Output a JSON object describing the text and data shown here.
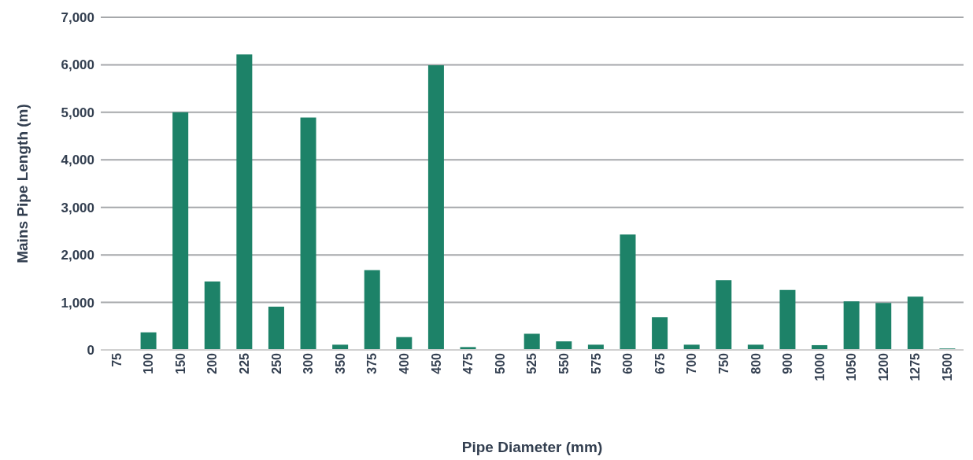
{
  "chart_data": {
    "type": "bar",
    "xlabel": "Pipe Diameter (mm)",
    "ylabel": "Mains Pipe Length (m)",
    "categories": [
      "75",
      "100",
      "150",
      "200",
      "225",
      "250",
      "300",
      "350",
      "375",
      "400",
      "450",
      "475",
      "500",
      "525",
      "550",
      "575",
      "600",
      "675",
      "700",
      "750",
      "800",
      "900",
      "1000",
      "1050",
      "1200",
      "1275",
      "1500"
    ],
    "values": [
      0,
      370,
      5000,
      1440,
      6220,
      910,
      4890,
      110,
      1680,
      270,
      5990,
      60,
      0,
      340,
      180,
      110,
      2430,
      690,
      110,
      1470,
      110,
      1260,
      100,
      1020,
      990,
      1120,
      30
    ],
    "color": "#1d8268",
    "ylim": [
      0,
      7000
    ],
    "yticks": [
      {
        "value": 0,
        "label": "0"
      },
      {
        "value": 1000,
        "label": "1,000"
      },
      {
        "value": 2000,
        "label": "2,000"
      },
      {
        "value": 3000,
        "label": "3,000"
      },
      {
        "value": 4000,
        "label": "4,000"
      },
      {
        "value": 5000,
        "label": "5,000"
      },
      {
        "value": 6000,
        "label": "6,000"
      },
      {
        "value": 7000,
        "label": "7,000"
      }
    ],
    "grid": "y",
    "legend": false
  }
}
